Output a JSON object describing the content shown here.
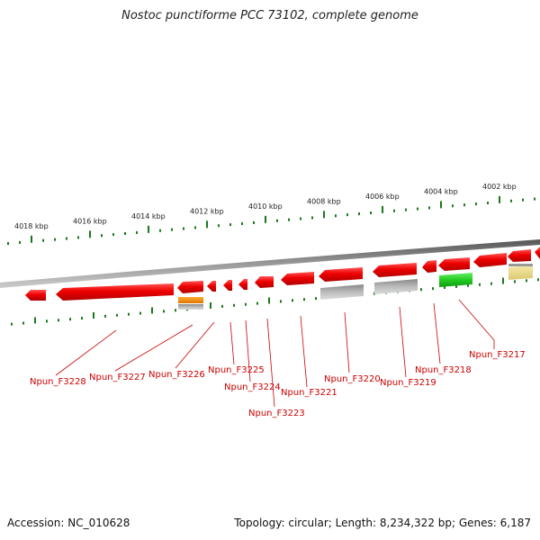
{
  "title": "Nostoc punctiforme PCC 73102, complete genome",
  "footer": {
    "accession": "Accession: NC_010628",
    "summary": "Topology: circular; Length: 8,234,322 bp; Genes: 6,187"
  },
  "colors": {
    "gene_red": "#ee0000",
    "backbone": "#888888",
    "tick_green": "#1a7a1a",
    "label_red": "#cc0000",
    "orange": "#ee8800",
    "gray": "#bbbbbb",
    "green": "#33cc33",
    "yellow": "#eedd88"
  },
  "kbp_labels": [
    "4018 kbp",
    "4016 kbp",
    "4014 kbp",
    "4012 kbp",
    "4010 kbp",
    "4008 kbp",
    "4006 kbp",
    "4004 kbp",
    "4002 kbp"
  ],
  "gene_labels": [
    "Npun_F3228",
    "Npun_F3227",
    "Npun_F3226",
    "Npun_F3225",
    "Npun_F3224",
    "Npun_F3223",
    "Npun_F3221",
    "Npun_F3220",
    "Npun_F3219",
    "Npun_F3218",
    "Npun_F3217"
  ]
}
